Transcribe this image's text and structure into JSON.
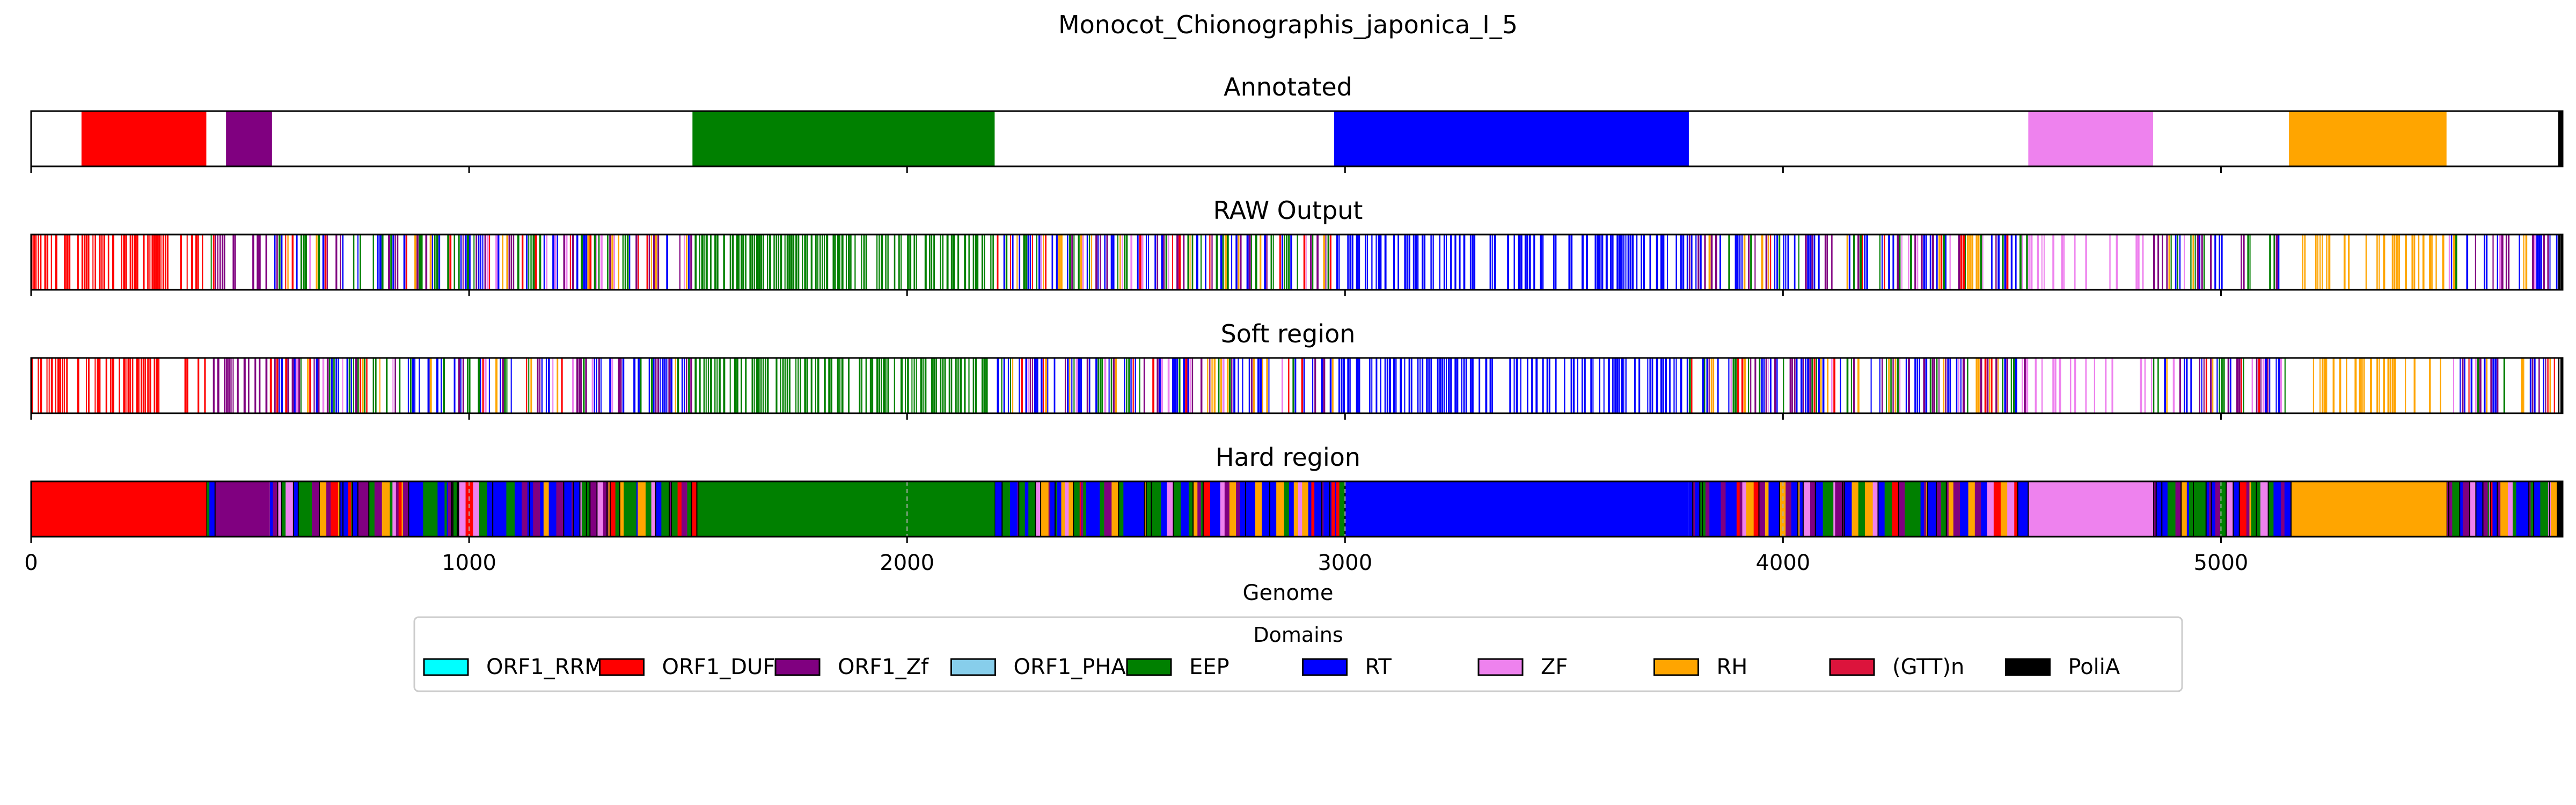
{
  "figure": {
    "suptitle": "Monocot_Chionographis_japonica_I_5",
    "xlabel": "Genome"
  },
  "legend": {
    "title": "Domains",
    "items": [
      {
        "label": "ORF1_RRM",
        "color": "#00FFFF"
      },
      {
        "label": "ORF1_DUF",
        "color": "#FF0000"
      },
      {
        "label": "ORF1_Zf",
        "color": "#800080"
      },
      {
        "label": "ORF1_PHA",
        "color": "#87CEEB"
      },
      {
        "label": "EEP",
        "color": "#008000"
      },
      {
        "label": "RT",
        "color": "#0000FF"
      },
      {
        "label": "ZF",
        "color": "#EE82EE"
      },
      {
        "label": "RH",
        "color": "#FFA500"
      },
      {
        "label": "(GTT)n",
        "color": "#DC143C"
      },
      {
        "label": "PoliA",
        "color": "#000000"
      }
    ]
  },
  "chart_data": {
    "type": "bar",
    "orientation": "horizontal-tracks",
    "xlim": [
      0,
      5780
    ],
    "xticks": [
      0,
      1000,
      2000,
      3000,
      4000,
      5000
    ],
    "grid": "x dashed",
    "legend_placement": "bottom-center",
    "colors": {
      "ORF1_RRM": "#00FFFF",
      "ORF1_DUF": "#FF0000",
      "ORF1_Zf": "#800080",
      "ORF1_PHA": "#87CEEB",
      "EEP": "#008000",
      "RT": "#0000FF",
      "ZF": "#EE82EE",
      "RH": "#FFA500",
      "(GTT)n": "#DC143C",
      "PoliA": "#000000"
    },
    "tracks": [
      {
        "title": "Annotated",
        "style": "segments",
        "segments": [
          {
            "domain": "ORF1_DUF",
            "start": 115,
            "end": 400
          },
          {
            "domain": "ORF1_Zf",
            "start": 445,
            "end": 550
          },
          {
            "domain": "EEP",
            "start": 1510,
            "end": 2200
          },
          {
            "domain": "RT",
            "start": 2975,
            "end": 3785
          },
          {
            "domain": "ZF",
            "start": 4560,
            "end": 4845
          },
          {
            "domain": "RH",
            "start": 5155,
            "end": 5515
          },
          {
            "domain": "PoliA",
            "start": 5770,
            "end": 5780
          }
        ]
      },
      {
        "title": "RAW Output",
        "style": "sparse",
        "seed": 11,
        "zones": [
          {
            "start": 0,
            "end": 400,
            "mix": {
              "ORF1_DUF": 1
            },
            "density": 0.55
          },
          {
            "start": 400,
            "end": 555,
            "mix": {
              "ORF1_Zf": 0.7,
              "EEP": 0.1,
              "RT": 0.1,
              "ORF1_DUF": 0.1
            },
            "density": 0.5
          },
          {
            "start": 555,
            "end": 1510,
            "mix": {
              "RT": 0.3,
              "EEP": 0.25,
              "ORF1_Zf": 0.2,
              "RH": 0.1,
              "ZF": 0.08,
              "ORF1_DUF": 0.07
            },
            "density": 0.62
          },
          {
            "start": 1510,
            "end": 2200,
            "mix": {
              "EEP": 1
            },
            "density": 0.6
          },
          {
            "start": 2200,
            "end": 2975,
            "mix": {
              "RT": 0.3,
              "EEP": 0.25,
              "ORF1_Zf": 0.15,
              "RH": 0.12,
              "ZF": 0.08,
              "ORF1_DUF": 0.1
            },
            "density": 0.62
          },
          {
            "start": 2975,
            "end": 3785,
            "mix": {
              "RT": 1
            },
            "density": 0.5
          },
          {
            "start": 3785,
            "end": 4560,
            "mix": {
              "RT": 0.3,
              "EEP": 0.2,
              "ORF1_Zf": 0.2,
              "RH": 0.12,
              "ZF": 0.08,
              "ORF1_DUF": 0.1
            },
            "density": 0.62
          },
          {
            "start": 4560,
            "end": 4845,
            "mix": {
              "ZF": 1
            },
            "density": 0.25
          },
          {
            "start": 4845,
            "end": 5155,
            "mix": {
              "RT": 0.3,
              "EEP": 0.25,
              "ORF1_Zf": 0.2,
              "RH": 0.1,
              "ZF": 0.1,
              "ORF1_DUF": 0.05
            },
            "density": 0.62
          },
          {
            "start": 5155,
            "end": 5515,
            "mix": {
              "RH": 1
            },
            "density": 0.3
          },
          {
            "start": 5515,
            "end": 5770,
            "mix": {
              "RT": 0.35,
              "ORF1_Zf": 0.25,
              "EEP": 0.15,
              "RH": 0.1,
              "ZF": 0.1,
              "ORF1_DUF": 0.05
            },
            "density": 0.62
          },
          {
            "start": 5770,
            "end": 5780,
            "mix": {
              "PoliA": 1
            },
            "density": 1
          }
        ]
      },
      {
        "title": "Soft region",
        "style": "sparse",
        "seed": 29,
        "zones": [
          {
            "start": 0,
            "end": 400,
            "mix": {
              "ORF1_DUF": 1
            },
            "density": 0.55
          },
          {
            "start": 400,
            "end": 555,
            "mix": {
              "ORF1_Zf": 0.7,
              "EEP": 0.1,
              "RT": 0.1,
              "ORF1_DUF": 0.1
            },
            "density": 0.5
          },
          {
            "start": 555,
            "end": 1510,
            "mix": {
              "RT": 0.3,
              "EEP": 0.25,
              "ORF1_Zf": 0.2,
              "RH": 0.1,
              "ZF": 0.08,
              "ORF1_DUF": 0.07
            },
            "density": 0.62
          },
          {
            "start": 1510,
            "end": 2200,
            "mix": {
              "EEP": 1
            },
            "density": 0.6
          },
          {
            "start": 2200,
            "end": 2975,
            "mix": {
              "RT": 0.3,
              "EEP": 0.25,
              "ORF1_Zf": 0.15,
              "RH": 0.12,
              "ZF": 0.08,
              "ORF1_DUF": 0.1
            },
            "density": 0.62
          },
          {
            "start": 2975,
            "end": 3785,
            "mix": {
              "RT": 1
            },
            "density": 0.5
          },
          {
            "start": 3785,
            "end": 4560,
            "mix": {
              "RT": 0.3,
              "EEP": 0.2,
              "ORF1_Zf": 0.2,
              "RH": 0.12,
              "ZF": 0.08,
              "ORF1_DUF": 0.1
            },
            "density": 0.62
          },
          {
            "start": 4560,
            "end": 4845,
            "mix": {
              "ZF": 1
            },
            "density": 0.25
          },
          {
            "start": 4845,
            "end": 5155,
            "mix": {
              "RT": 0.3,
              "EEP": 0.25,
              "ORF1_Zf": 0.2,
              "RH": 0.1,
              "ZF": 0.1,
              "ORF1_DUF": 0.05
            },
            "density": 0.62
          },
          {
            "start": 5155,
            "end": 5515,
            "mix": {
              "RH": 1
            },
            "density": 0.3
          },
          {
            "start": 5515,
            "end": 5770,
            "mix": {
              "RT": 0.35,
              "ORF1_Zf": 0.25,
              "EEP": 0.15,
              "RH": 0.1,
              "ZF": 0.1,
              "ORF1_DUF": 0.05
            },
            "density": 0.62
          },
          {
            "start": 5770,
            "end": 5780,
            "mix": {
              "PoliA": 1
            },
            "density": 1
          }
        ]
      },
      {
        "title": "Hard region",
        "style": "solid",
        "seed": 47,
        "segments": [
          {
            "domain": "ORF1_DUF",
            "start": 0,
            "end": 400
          },
          {
            "domain": "ORF1_Zf",
            "start": 420,
            "end": 545
          },
          {
            "domain": "EEP",
            "start": 1520,
            "end": 2200
          },
          {
            "domain": "RT",
            "start": 3000,
            "end": 3785
          },
          {
            "domain": "ZF",
            "start": 4560,
            "end": 4845
          },
          {
            "domain": "RH",
            "start": 5160,
            "end": 5515
          },
          {
            "domain": "PoliA",
            "start": 5770,
            "end": 5780
          }
        ],
        "mixed_zones": [
          {
            "start": 400,
            "end": 420,
            "mix": {
              "EEP": 0.6,
              "RT": 0.4
            }
          },
          {
            "start": 545,
            "end": 1520,
            "mix": {
              "RT": 0.3,
              "EEP": 0.25,
              "ORF1_Zf": 0.2,
              "RH": 0.1,
              "ZF": 0.08,
              "ORF1_DUF": 0.07
            }
          },
          {
            "start": 2200,
            "end": 3000,
            "mix": {
              "RT": 0.3,
              "EEP": 0.25,
              "ORF1_Zf": 0.15,
              "RH": 0.12,
              "ZF": 0.08,
              "ORF1_DUF": 0.1
            }
          },
          {
            "start": 3785,
            "end": 4560,
            "mix": {
              "RT": 0.3,
              "EEP": 0.2,
              "ORF1_Zf": 0.2,
              "RH": 0.12,
              "ZF": 0.08,
              "ORF1_DUF": 0.1
            }
          },
          {
            "start": 4845,
            "end": 5160,
            "mix": {
              "RT": 0.3,
              "EEP": 0.25,
              "ORF1_Zf": 0.2,
              "RH": 0.1,
              "ZF": 0.1,
              "ORF1_DUF": 0.05
            }
          },
          {
            "start": 5515,
            "end": 5770,
            "mix": {
              "RT": 0.35,
              "ORF1_Zf": 0.25,
              "EEP": 0.15,
              "RH": 0.1,
              "ZF": 0.1,
              "ORF1_DUF": 0.05
            }
          }
        ]
      }
    ]
  }
}
